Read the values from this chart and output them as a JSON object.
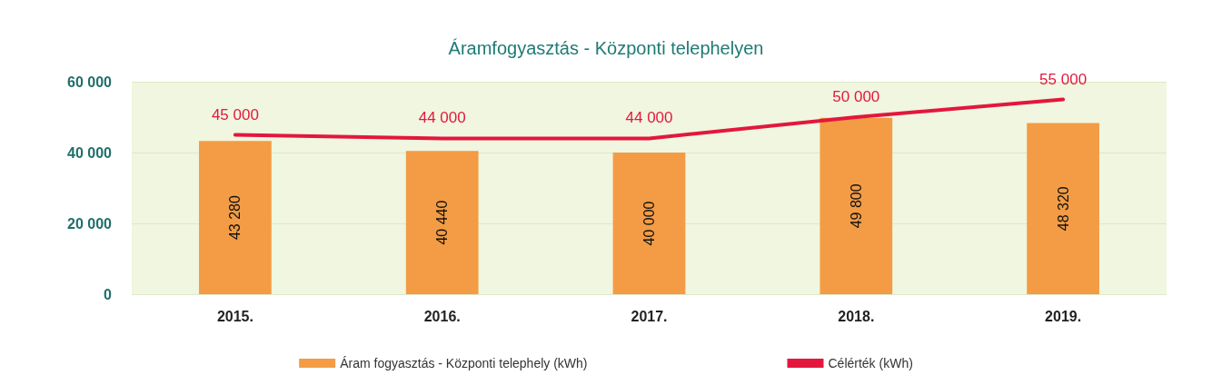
{
  "chart_data": {
    "type": "bar",
    "title": "Áramfogyasztás - Központi telephelyen",
    "categories": [
      "2015.",
      "2016.",
      "2017.",
      "2018.",
      "2019."
    ],
    "series": [
      {
        "name": "Áram fogyasztás - Központi telephely (kWh)",
        "color": "#f39c45",
        "values": [
          43280,
          40440,
          40000,
          49800,
          48320
        ],
        "value_labels": [
          "43 280",
          "40 440",
          "40 000",
          "49 800",
          "48 320"
        ]
      },
      {
        "type": "line",
        "name": "Célérték (kWh)",
        "color": "#e3173e",
        "values": [
          45000,
          44000,
          44000,
          50000,
          55000
        ],
        "value_labels": [
          "45 000",
          "44 000",
          "44 000",
          "50 000",
          "55 000"
        ]
      }
    ],
    "ylim": [
      0,
      60000
    ],
    "yticks": [
      {
        "value": 0,
        "label": "0"
      },
      {
        "value": 20000,
        "label": "20 000"
      },
      {
        "value": 40000,
        "label": "40 000"
      },
      {
        "value": 60000,
        "label": "60 000"
      }
    ],
    "grid": "y",
    "legend": "bottom",
    "marker": "none",
    "line_style": "solid"
  }
}
